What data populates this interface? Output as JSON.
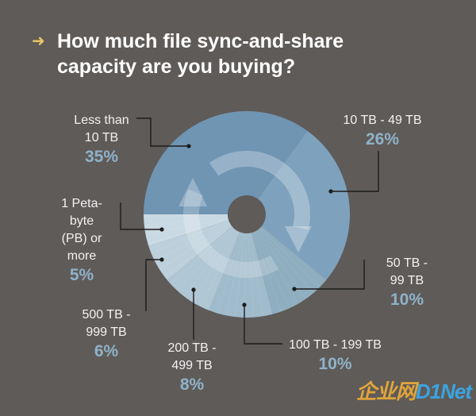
{
  "header": {
    "title_line1": "How much file sync-and-share",
    "title_line2": "capacity are you buying?"
  },
  "chart_data": {
    "type": "pie",
    "title": "How much file sync-and-share capacity are you buying?",
    "categories": [
      "Less than 10 TB",
      "10 TB - 49 TB",
      "50 TB - 99 TB",
      "100 TB - 199 TB",
      "200 TB - 499 TB",
      "500 TB - 999 TB",
      "1 Petabyte (PB) or more"
    ],
    "values": [
      35,
      26,
      10,
      10,
      8,
      6,
      5
    ],
    "units": "%",
    "colors": [
      "#6f95b3",
      "#7ea2bd",
      "#8faebf",
      "#a0bbcb",
      "#afc6d4",
      "#bcd0dc",
      "#c9d9e3"
    ],
    "legend": "none"
  },
  "labels": {
    "l1_line1": "Less than",
    "l1_line2": "10 TB",
    "l1_pct": "35%",
    "l2_line1": "10 TB - 49 TB",
    "l2_pct": "26%",
    "l3_line1": "50 TB -",
    "l3_line2": "99 TB",
    "l3_pct": "10%",
    "l4_line1": "100 TB - 199 TB",
    "l4_pct": "10%",
    "l5_line1": "200 TB -",
    "l5_line2": "499 TB",
    "l5_pct": "8%",
    "l6_line1": "500 TB -",
    "l6_line2": "999 TB",
    "l6_pct": "6%",
    "l7_line1": "1 Peta-",
    "l7_line2": "byte",
    "l7_line3": "(PB) or",
    "l7_line4": "more",
    "l7_pct": "5%"
  },
  "watermark": {
    "part1": "企业网",
    "part2": "D1Net"
  }
}
